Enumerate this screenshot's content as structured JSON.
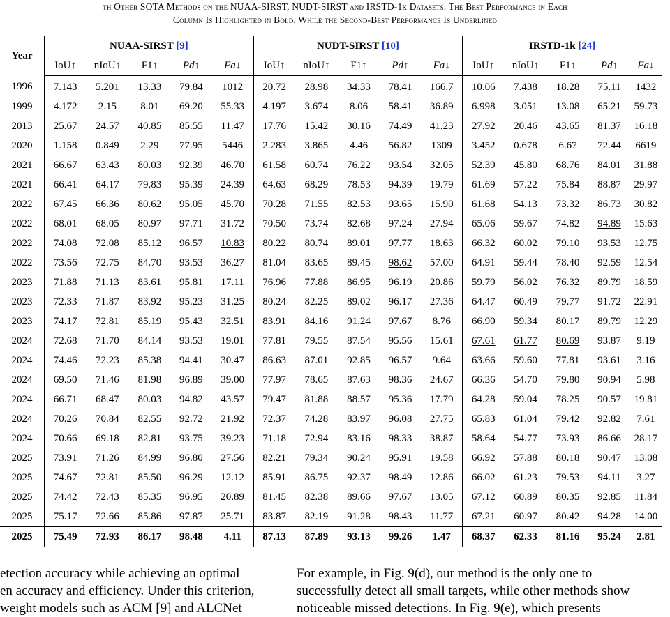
{
  "caption": {
    "line1": "th Other SOTA Methods on the NUAA-SIRST, NUDT-SIRST and IRSTD-1k Datasets. The Best Performance in Each",
    "line2": "Column Is Highlighted in Bold, While the Second-Best Performance Is Underlined"
  },
  "header": {
    "year": "Year",
    "datasets": [
      {
        "name": "NUAA-SIRST",
        "ref": "[9]"
      },
      {
        "name": "NUDT-SIRST",
        "ref": "[10]"
      },
      {
        "name": "IRSTD-1k",
        "ref": "[24]"
      }
    ],
    "metrics": [
      "IoU↑",
      "nIoU↑",
      "F1↑",
      "Pd↑",
      "Fa↓"
    ]
  },
  "table": {
    "rows": [
      {
        "year": "1996",
        "vals": [
          "7.143",
          "5.201",
          "13.33",
          "79.84",
          "1012",
          "20.72",
          "28.98",
          "34.33",
          "78.41",
          "166.7",
          "10.06",
          "7.438",
          "18.28",
          "75.11",
          "1432"
        ]
      },
      {
        "year": "1999",
        "vals": [
          "4.172",
          "2.15",
          "8.01",
          "69.20",
          "55.33",
          "4.197",
          "3.674",
          "8.06",
          "58.41",
          "36.89",
          "6.998",
          "3.051",
          "13.08",
          "65.21",
          "59.73"
        ]
      },
      {
        "year": "2013",
        "vals": [
          "25.67",
          "24.57",
          "40.85",
          "85.55",
          "11.47",
          "17.76",
          "15.42",
          "30.16",
          "74.49",
          "41.23",
          "27.92",
          "20.46",
          "43.65",
          "81.37",
          "16.18"
        ]
      },
      {
        "year": "2020",
        "vals": [
          "1.158",
          "0.849",
          "2.29",
          "77.95",
          "5446",
          "2.283",
          "3.865",
          "4.46",
          "56.82",
          "1309",
          "3.452",
          "0.678",
          "6.67",
          "72.44",
          "6619"
        ]
      },
      {
        "year": "2021",
        "vals": [
          "66.67",
          "63.43",
          "80.03",
          "92.39",
          "46.70",
          "61.58",
          "60.74",
          "76.22",
          "93.54",
          "32.05",
          "52.39",
          "45.80",
          "68.76",
          "84.01",
          "31.88"
        ]
      },
      {
        "year": "2021",
        "vals": [
          "66.41",
          "64.17",
          "79.83",
          "95.39",
          "24.39",
          "64.63",
          "68.29",
          "78.53",
          "94.39",
          "19.79",
          "61.69",
          "57.22",
          "75.84",
          "88.87",
          "29.97"
        ]
      },
      {
        "year": "2022",
        "vals": [
          "67.45",
          "66.36",
          "80.62",
          "95.05",
          "45.70",
          "70.28",
          "71.55",
          "82.53",
          "93.65",
          "15.90",
          "61.68",
          "54.13",
          "73.32",
          "86.73",
          "30.82"
        ]
      },
      {
        "year": "2022",
        "vals": [
          "68.01",
          "68.05",
          "80.97",
          "97.71",
          "31.72",
          "70.50",
          "73.74",
          "82.68",
          "97.24",
          "27.94",
          "65.06",
          "59.67",
          "74.82",
          "94.89",
          "15.63"
        ],
        "underline": [
          13
        ]
      },
      {
        "year": "2022",
        "vals": [
          "74.08",
          "72.08",
          "85.12",
          "96.57",
          "10.83",
          "80.22",
          "80.74",
          "89.01",
          "97.77",
          "18.63",
          "66.32",
          "60.02",
          "79.10",
          "93.53",
          "12.75"
        ],
        "underline": [
          4
        ]
      },
      {
        "year": "2022",
        "vals": [
          "73.56",
          "72.75",
          "84.70",
          "93.53",
          "36.27",
          "81.04",
          "83.65",
          "89.45",
          "98.62",
          "57.00",
          "64.91",
          "59.44",
          "78.40",
          "92.59",
          "12.54"
        ],
        "underline": [
          8
        ]
      },
      {
        "year": "2023",
        "vals": [
          "71.88",
          "71.13",
          "83.61",
          "95.81",
          "17.11",
          "76.96",
          "77.88",
          "86.95",
          "96.19",
          "20.86",
          "59.79",
          "56.02",
          "76.32",
          "89.79",
          "18.59"
        ]
      },
      {
        "year": "2023",
        "vals": [
          "72.33",
          "71.87",
          "83.92",
          "95.23",
          "31.25",
          "80.24",
          "82.25",
          "89.02",
          "96.17",
          "27.36",
          "64.47",
          "60.49",
          "79.77",
          "91.72",
          "22.91"
        ]
      },
      {
        "year": "2023",
        "vals": [
          "74.17",
          "72.81",
          "85.19",
          "95.43",
          "32.51",
          "83.91",
          "84.16",
          "91.24",
          "97.67",
          "8.76",
          "66.90",
          "59.34",
          "80.17",
          "89.79",
          "12.29"
        ],
        "underline": [
          1,
          9
        ]
      },
      {
        "year": "2024",
        "vals": [
          "72.68",
          "71.70",
          "84.14",
          "93.53",
          "19.01",
          "77.81",
          "79.55",
          "87.54",
          "95.56",
          "15.61",
          "67.61",
          "61.77",
          "80.69",
          "93.87",
          "9.19"
        ],
        "underline": [
          10,
          11,
          12
        ]
      },
      {
        "year": "2024",
        "vals": [
          "74.46",
          "72.23",
          "85.38",
          "94.41",
          "30.47",
          "86.63",
          "87.01",
          "92.85",
          "96.57",
          "9.64",
          "63.66",
          "59.60",
          "77.81",
          "93.61",
          "3.16"
        ],
        "underline": [
          5,
          6,
          7,
          14
        ]
      },
      {
        "year": "2024",
        "vals": [
          "69.50",
          "71.46",
          "81.98",
          "96.89",
          "39.00",
          "77.97",
          "78.65",
          "87.63",
          "98.36",
          "24.67",
          "66.36",
          "54.70",
          "79.80",
          "90.94",
          "5.98"
        ]
      },
      {
        "year": "2024",
        "vals": [
          "66.71",
          "68.47",
          "80.03",
          "94.82",
          "43.57",
          "79.47",
          "81.88",
          "88.57",
          "95.36",
          "17.79",
          "64.28",
          "59.04",
          "78.25",
          "90.57",
          "19.81"
        ]
      },
      {
        "year": "2024",
        "vals": [
          "70.26",
          "70.84",
          "82.55",
          "92.72",
          "21.92",
          "72.37",
          "74.28",
          "83.97",
          "96.08",
          "27.75",
          "65.83",
          "61.04",
          "79.42",
          "92.82",
          "7.61"
        ]
      },
      {
        "year": "2024",
        "vals": [
          "70.66",
          "69.18",
          "82.81",
          "93.75",
          "39.23",
          "71.18",
          "72.94",
          "83.16",
          "98.33",
          "38.87",
          "58.64",
          "54.77",
          "73.93",
          "86.66",
          "28.17"
        ]
      },
      {
        "year": "2025",
        "vals": [
          "73.91",
          "71.26",
          "84.99",
          "96.80",
          "27.56",
          "82.21",
          "79.34",
          "90.24",
          "95.91",
          "19.58",
          "66.92",
          "57.88",
          "80.18",
          "90.47",
          "13.08"
        ]
      },
      {
        "year": "2025",
        "vals": [
          "74.67",
          "72.81",
          "85.50",
          "96.29",
          "12.12",
          "85.91",
          "86.75",
          "92.37",
          "98.49",
          "12.86",
          "66.02",
          "61.23",
          "79.53",
          "94.11",
          "3.27"
        ],
        "underline": [
          1
        ]
      },
      {
        "year": "2025",
        "vals": [
          "74.42",
          "72.43",
          "85.35",
          "96.95",
          "20.89",
          "81.45",
          "82.38",
          "89.66",
          "97.67",
          "13.05",
          "67.12",
          "60.89",
          "80.35",
          "92.85",
          "11.84"
        ]
      },
      {
        "year": "2025",
        "vals": [
          "75.17",
          "72.66",
          "85.86",
          "97.87",
          "25.71",
          "83.87",
          "82.19",
          "91.28",
          "98.43",
          "11.77",
          "67.21",
          "60.97",
          "80.42",
          "94.28",
          "14.00"
        ],
        "underline": [
          0,
          2,
          3
        ]
      },
      {
        "year": "2025",
        "vals": [
          "75.49",
          "72.93",
          "86.17",
          "98.48",
          "4.11",
          "87.13",
          "87.89",
          "93.13",
          "99.26",
          "1.47",
          "68.37",
          "62.33",
          "81.16",
          "95.24",
          "2.81"
        ],
        "bold": true
      }
    ]
  },
  "body": {
    "left": [
      "etection accuracy while achieving an optimal",
      "en accuracy and efficiency. Under this criterion,",
      "weight models such as ACM [9] and ALCNet"
    ],
    "right": [
      "For example, in Fig. 9(d), our method is the only one to",
      "successfully detect all small targets, while other methods show",
      "noticeable missed detections. In Fig. 9(e), which presents"
    ]
  }
}
